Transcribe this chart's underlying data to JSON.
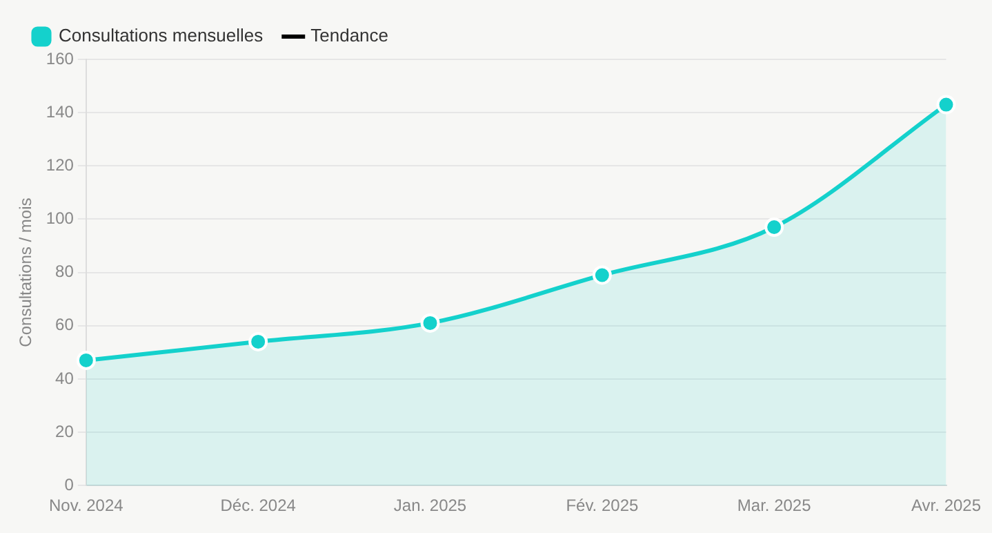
{
  "chart_data": {
    "type": "area",
    "ylabel": "Consultations / mois",
    "categories": [
      "Nov. 2024",
      "Déc. 2024",
      "Jan. 2025",
      "Fév. 2025",
      "Mar. 2025",
      "Avr. 2025"
    ],
    "series": [
      {
        "name": "Consultations mensuelles",
        "color": "#14d1cc",
        "values": [
          47,
          54,
          61,
          79,
          97,
          143
        ]
      },
      {
        "name": "Tendance",
        "type": "line",
        "color": "#000000",
        "values": [
          null,
          null,
          null,
          null,
          null,
          null
        ]
      }
    ],
    "ylim": [
      0,
      160
    ],
    "yticks": [
      0,
      20,
      40,
      60,
      80,
      100,
      120,
      140,
      160
    ],
    "grid": "y",
    "legend": "top left",
    "marker": "circle"
  }
}
